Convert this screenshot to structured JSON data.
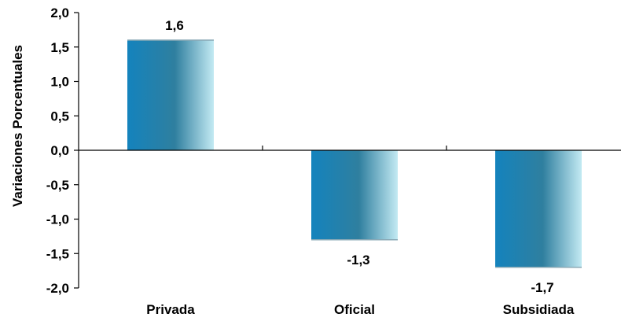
{
  "chart_data": {
    "type": "bar",
    "title": "",
    "xlabel": "",
    "ylabel": "Variaciones Porcentuales",
    "categories": [
      "Privada",
      "Oficial",
      "Subsidiada"
    ],
    "values": [
      1.6,
      -1.3,
      -1.7
    ],
    "value_labels": [
      "1,6",
      "-1,3",
      "-1,7"
    ],
    "ylim": [
      -2.0,
      2.0
    ],
    "yticks": [
      2.0,
      1.5,
      1.0,
      0.5,
      0.0,
      -0.5,
      -1.0,
      -1.5,
      -2.0
    ],
    "ytick_labels": [
      "2,0",
      "1,5",
      "1,0",
      "0,5",
      "0,0",
      "-0,5",
      "-1,0",
      "-1,5",
      "-2,0"
    ],
    "grid": false,
    "legend": "none",
    "colors": {
      "bar_dark": "#1483bd",
      "bar_mid": "#2f7f9f",
      "bar_light": "#c3eaf3",
      "axis": "#000000"
    }
  }
}
